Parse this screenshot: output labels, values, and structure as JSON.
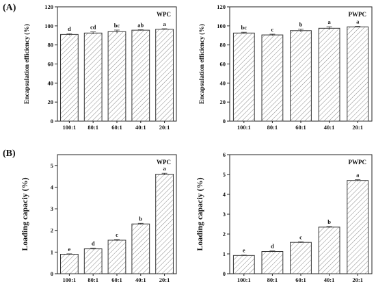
{
  "panel_labels": {
    "a": "(A)",
    "b": "(B)"
  },
  "pattern": {
    "fill": "#ffffff",
    "hatch": "#8a8a8a",
    "stroke": "#333333"
  },
  "chart_data": [
    {
      "type": "bar",
      "title": "WPC",
      "ylabel": "Encapsulation efficiency (%)",
      "categories": [
        "100:1",
        "80:1",
        "60:1",
        "40:1",
        "20:1"
      ],
      "values": [
        91,
        92.5,
        94,
        95.5,
        96.5
      ],
      "errors": [
        0.8,
        1.2,
        1.6,
        0.5,
        0.5
      ],
      "significance": [
        "d",
        "cd",
        "bc",
        "ab",
        "a"
      ],
      "ylim": [
        0,
        120
      ],
      "yticks": [
        "0",
        "20",
        "40",
        "60",
        "80",
        "100",
        "120"
      ]
    },
    {
      "type": "bar",
      "title": "PWPC",
      "ylabel": "Encapsulation efficiency (%)",
      "categories": [
        "100:1",
        "80:1",
        "60:1",
        "40:1",
        "20:1"
      ],
      "values": [
        92.5,
        90.5,
        95,
        97.5,
        99
      ],
      "errors": [
        0.8,
        0.8,
        1.6,
        1.6,
        0.5
      ],
      "significance": [
        "bc",
        "c",
        "b",
        "a",
        "a"
      ],
      "ylim": [
        0,
        120
      ],
      "yticks": [
        "0",
        "20",
        "40",
        "60",
        "80",
        "100",
        "120"
      ]
    },
    {
      "type": "bar",
      "title": "WPC",
      "ylabel": "Loading capaciy (%)",
      "categories": [
        "100:1",
        "80:1",
        "60:1",
        "40:1",
        "20:1"
      ],
      "values": [
        0.9,
        1.15,
        1.55,
        2.3,
        4.6
      ],
      "errors": [
        0.02,
        0.03,
        0.03,
        0.03,
        0.04
      ],
      "significance": [
        "e",
        "d",
        "c",
        "b",
        "a"
      ],
      "ylim": [
        0,
        5.5
      ],
      "yticks": [
        "0",
        "1",
        "2",
        "3",
        "4",
        "5"
      ]
    },
    {
      "type": "bar",
      "title": "PWPC",
      "ylabel": "Loading capaciy (%)",
      "categories": [
        "100:1",
        "80:1",
        "60:1",
        "40:1",
        "20:1"
      ],
      "values": [
        0.92,
        1.12,
        1.58,
        2.35,
        4.7
      ],
      "errors": [
        0.02,
        0.03,
        0.03,
        0.03,
        0.04
      ],
      "significance": [
        "e",
        "d",
        "c",
        "b",
        "a"
      ],
      "ylim": [
        0,
        6
      ],
      "yticks": [
        "0",
        "1",
        "2",
        "3",
        "4",
        "5",
        "6"
      ]
    }
  ]
}
